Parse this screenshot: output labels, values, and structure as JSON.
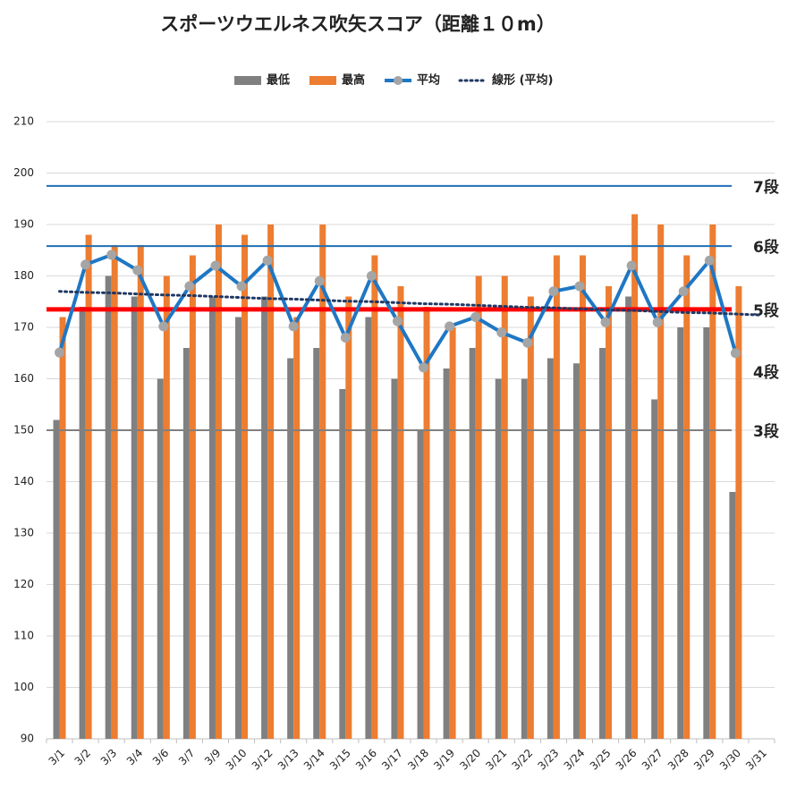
{
  "chart_data": {
    "type": "bar",
    "title": "スポーツウエルネス吹矢スコア（距離１０m）",
    "categories": [
      "3/1",
      "3/2",
      "3/3",
      "3/4",
      "3/6",
      "3/7",
      "3/9",
      "3/10",
      "3/12",
      "3/13",
      "3/14",
      "3/15",
      "3/16",
      "3/17",
      "3/18",
      "3/19",
      "3/20",
      "3/21",
      "3/22",
      "3/23",
      "3/24",
      "3/25",
      "3/26",
      "3/27",
      "3/28",
      "3/29",
      "3/30",
      "3/31"
    ],
    "series": [
      {
        "name": "最低",
        "type": "bar",
        "color": "#808080",
        "values": [
          152,
          174,
          180,
          176,
          160,
          166,
          176,
          172,
          176,
          164,
          166,
          158,
          172,
          160,
          150,
          162,
          166,
          160,
          160,
          164,
          163,
          166,
          176,
          156,
          170,
          170,
          138,
          null
        ]
      },
      {
        "name": "最高",
        "type": "bar",
        "color": "#ed7d31",
        "values": [
          172,
          188,
          186,
          186,
          180,
          184,
          190,
          188,
          190,
          172,
          190,
          176,
          184,
          178,
          174,
          170,
          180,
          180,
          176,
          184,
          184,
          178,
          192,
          190,
          184,
          190,
          178,
          null
        ]
      },
      {
        "name": "平均",
        "type": "line",
        "color": "#1f77c4",
        "marker_color": "#a5a5a5",
        "values": [
          165.1,
          182.2,
          184.1,
          181.1,
          170.2,
          178,
          182,
          178,
          183,
          170.2,
          179,
          168,
          180,
          171.2,
          162.2,
          170.2,
          172,
          169,
          167,
          177,
          178,
          171,
          182,
          171,
          177,
          183,
          165,
          null
        ]
      },
      {
        "name": "線形 (平均)",
        "type": "dotted",
        "color": "#1f3864",
        "values": [
          177.0,
          176.8,
          176.7,
          176.5,
          176.3,
          176.2,
          176.0,
          175.8,
          175.6,
          175.5,
          175.3,
          175.1,
          175.0,
          174.8,
          174.6,
          174.5,
          174.3,
          174.1,
          173.9,
          173.8,
          173.6,
          173.4,
          173.3,
          173.1,
          172.9,
          172.8,
          172.6,
          172.4
        ]
      }
    ],
    "reference_lines": [
      {
        "label": "7段",
        "value": 197.5,
        "color": "#1f6fb4",
        "label_color": "#000000",
        "width": 2,
        "line": true
      },
      {
        "label": "6段",
        "value": 185.8,
        "color": "#1f6fb4",
        "label_color": "#000000",
        "width": 2,
        "line": true
      },
      {
        "label": "5段",
        "value": 173.5,
        "color": "#ff0000",
        "label_color": "#1f6fb4",
        "width": 5,
        "line": true
      },
      {
        "label": "4段",
        "value": 161.5,
        "color": "#808080",
        "label_color": "#000000",
        "width": 2,
        "line": false
      },
      {
        "label": "3段",
        "value": 150,
        "color": "#808080",
        "label_color": "#000000",
        "width": 2,
        "line": true
      }
    ],
    "ylim": [
      90,
      210
    ],
    "yticks": [
      90,
      100,
      110,
      120,
      130,
      140,
      150,
      160,
      170,
      180,
      190,
      200,
      210
    ],
    "grid": true
  }
}
